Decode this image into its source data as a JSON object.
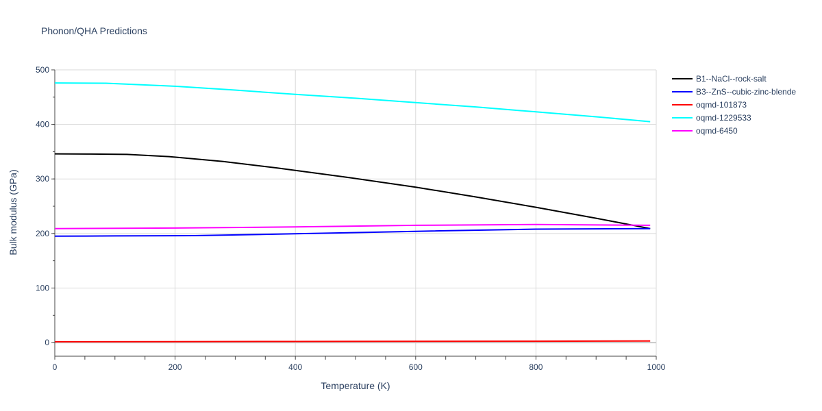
{
  "chart_data": {
    "type": "line",
    "title": "Phonon/QHA Predictions",
    "xlabel": "Temperature (K)",
    "ylabel": "Bulk modulus (GPa)",
    "xlim": [
      0,
      1000
    ],
    "ylim": [
      -25,
      500
    ],
    "x_ticks": [
      0,
      200,
      400,
      600,
      800,
      1000
    ],
    "y_ticks": [
      0,
      100,
      200,
      300,
      400,
      500
    ],
    "grid": true,
    "legend_position": "top-right outside",
    "series": [
      {
        "name": "B1--NaCl--rock-salt",
        "color": "#000000",
        "x": [
          0,
          60,
          120,
          190,
          280,
          370,
          480,
          600,
          700,
          800,
          900,
          990
        ],
        "y": [
          346,
          345.6,
          345,
          341,
          332,
          320,
          304,
          285,
          267,
          248,
          228,
          209
        ]
      },
      {
        "name": "B3--ZnS--cubic-zinc-blende",
        "color": "#0000ff",
        "x": [
          0,
          100,
          230,
          400,
          600,
          800,
          990
        ],
        "y": [
          195,
          195.5,
          196,
          199.5,
          204,
          208,
          209
        ]
      },
      {
        "name": "oqmd-101873",
        "color": "#ff0000",
        "x": [
          0,
          400,
          800,
          990
        ],
        "y": [
          1.5,
          2,
          2.5,
          3
        ]
      },
      {
        "name": "oqmd-1229533",
        "color": "#00ffff",
        "x": [
          0,
          85,
          200,
          300,
          400,
          500,
          600,
          700,
          800,
          900,
          990
        ],
        "y": [
          476,
          475.5,
          470,
          463,
          455,
          448,
          440,
          432,
          423,
          414,
          405
        ]
      },
      {
        "name": "oqmd-6450",
        "color": "#ff00ff",
        "x": [
          0,
          200,
          400,
          600,
          800,
          990
        ],
        "y": [
          209,
          210,
          212,
          215,
          216.5,
          215
        ]
      }
    ]
  }
}
